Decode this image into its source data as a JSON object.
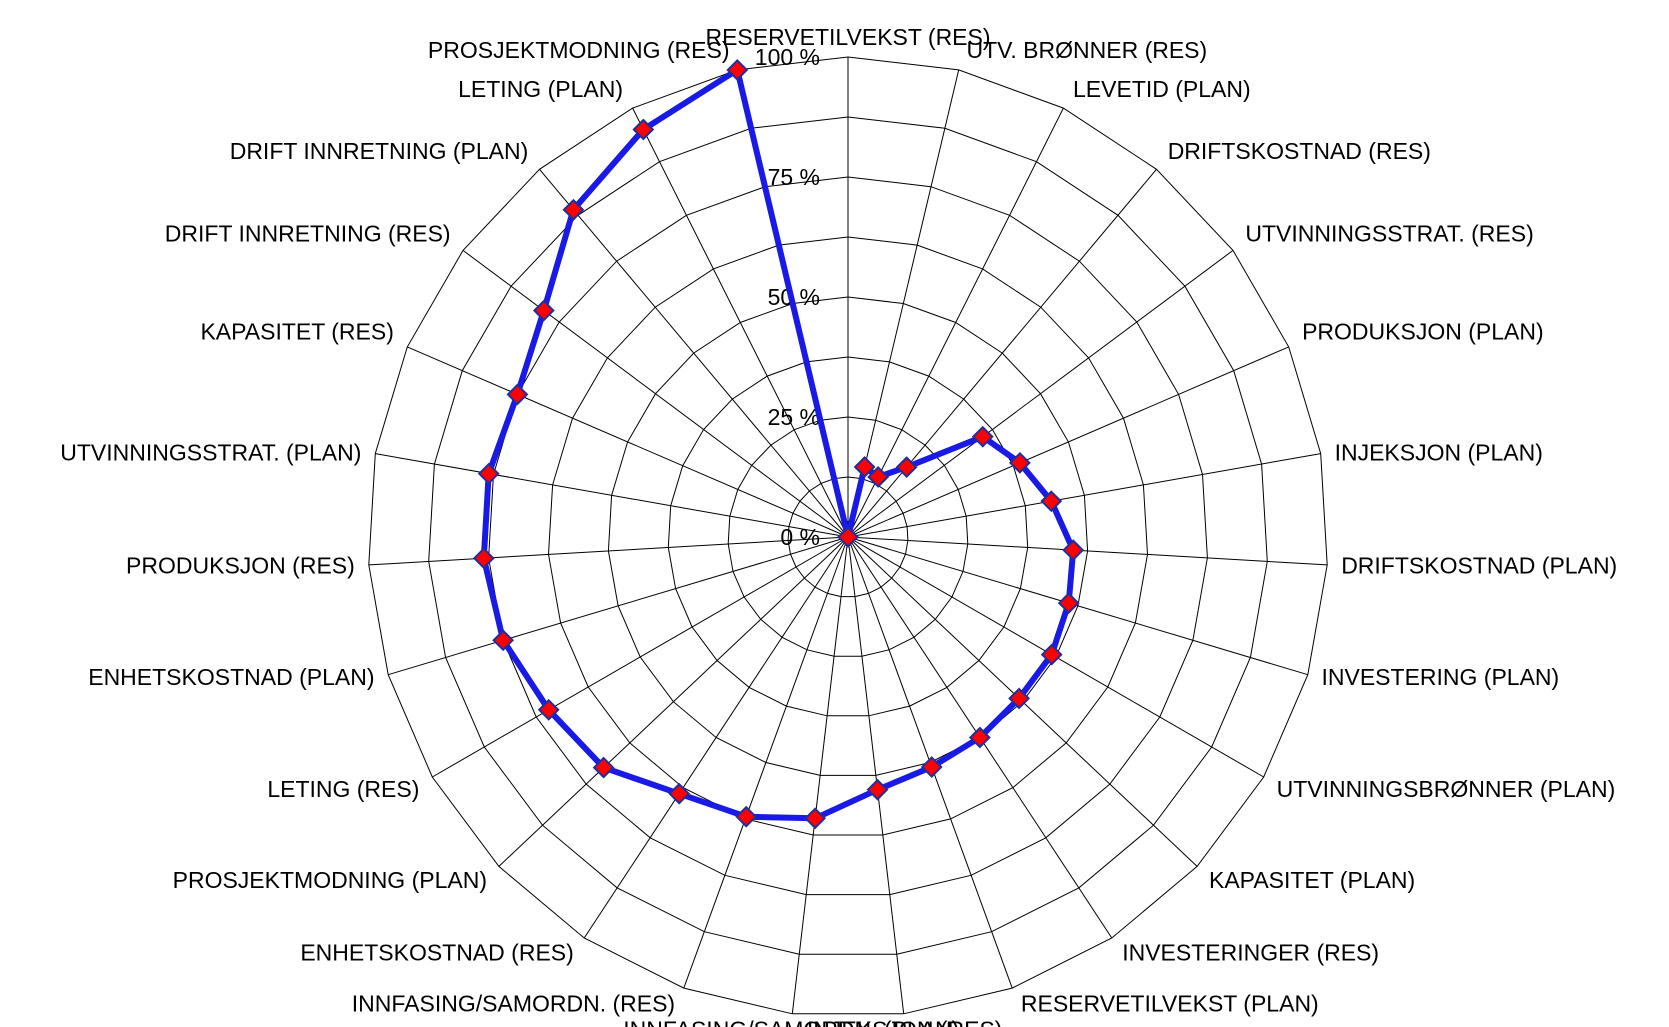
{
  "chart_data": {
    "type": "radar",
    "categories": [
      "RESERVETILVEKST (RES)",
      "UTV. BRØNNER (RES)",
      "LEVETID (PLAN)",
      "DRIFTSKOSTNAD (RES)",
      "UTVINNINGSSTRAT. (RES)",
      "PRODUKSJON (PLAN)",
      "INJEKSJON (PLAN)",
      "DRIFTSKOSTNAD (PLAN)",
      "INVESTERING (PLAN)",
      "UTVINNINGSBRØNNER (PLAN)",
      "KAPASITET (PLAN)",
      "INVESTERINGER (RES)",
      "RESERVETILVEKST (PLAN)",
      "INJEKSJON (RES)",
      "INNFASING/SAMORDN. (PLAN)",
      "INNFASING/SAMORDN. (RES)",
      "ENHETSKOSTNAD (RES)",
      "PROSJEKTMODNING (PLAN)",
      "LETING (RES)",
      "ENHETSKOSTNAD (PLAN)",
      "PRODUKSJON (RES)",
      "UTVINNINGSSTRAT. (PLAN)",
      "KAPASITET (RES)",
      "DRIFT INNRETNING (RES)",
      "DRIFT INNRETNING (PLAN)",
      "LETING (PLAN)",
      "PROSJEKTMODNING (RES)"
    ],
    "series": [
      {
        "values": [
          0,
          15,
          14,
          19,
          35,
          39,
          43,
          47,
          48,
          49,
          49,
          50,
          51,
          53,
          59,
          62,
          64,
          70,
          72,
          75,
          76,
          76,
          75,
          79,
          89,
          95,
          100
        ]
      }
    ],
    "ylim": [
      0,
      100
    ],
    "tick_values": [
      0,
      25,
      50,
      75,
      100
    ],
    "tick_labels": [
      "0 %",
      "25 %",
      "50 %",
      "75 %",
      "100 %"
    ],
    "grid": true,
    "legend": "none",
    "colors": {
      "line": "#1a1ae6",
      "marker_fill": "#ff0000",
      "marker_stroke": "#1f2f9c",
      "grid": "#000000",
      "background": "#ffffff"
    }
  }
}
